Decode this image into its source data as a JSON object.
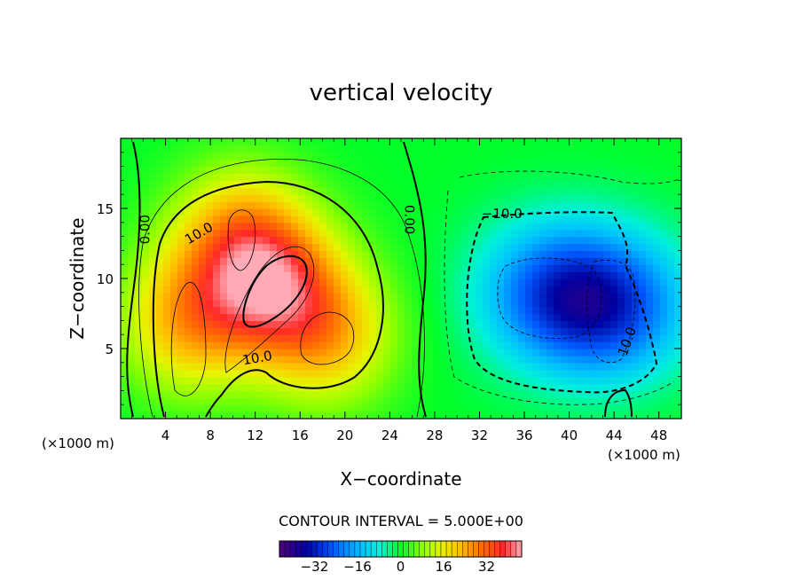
{
  "chart_data": {
    "type": "heatmap",
    "title": "vertical velocity",
    "xlabel": "X−coordinate",
    "ylabel": "Z−coordinate",
    "x_unit_label": "(×1000 m)",
    "y_unit_label": "(×1000 m)",
    "xlim": [
      0,
      50
    ],
    "ylim": [
      0,
      20
    ],
    "x_ticks": [
      4,
      8,
      12,
      16,
      20,
      24,
      28,
      32,
      36,
      40,
      44,
      48
    ],
    "y_ticks": [
      5,
      10,
      15
    ],
    "contour_interval_label": "CONTOUR INTERVAL = 5.000E+00",
    "contour_labels": [
      {
        "text": "0.00",
        "x": 2.2,
        "z": 13.5,
        "rotate": -90
      },
      {
        "text": "10.0",
        "x": 7.0,
        "z": 13.2,
        "rotate": -30
      },
      {
        "text": "10.0",
        "x": 12.2,
        "z": 4.3,
        "rotate": -10
      },
      {
        "text": "0.00",
        "x": 25.7,
        "z": 14.2,
        "rotate": 90
      },
      {
        "text": "−10.0",
        "x": 34.0,
        "z": 14.6,
        "rotate": 0
      },
      {
        "text": "10.0",
        "x": 45.2,
        "z": 5.5,
        "rotate": -70
      }
    ],
    "field_extrema": [
      {
        "sign": "max",
        "x": 13.5,
        "z": 9.5,
        "value": 30
      },
      {
        "sign": "max",
        "x": 6.0,
        "z": 7.0,
        "value": 22
      },
      {
        "sign": "max",
        "x": 18.5,
        "z": 6.0,
        "value": 20
      },
      {
        "sign": "max",
        "x": 10.5,
        "z": 13.0,
        "value": 20
      },
      {
        "sign": "min",
        "x": 38.5,
        "z": 9.0,
        "value": -22
      },
      {
        "sign": "min",
        "x": 44.0,
        "z": 8.0,
        "value": -24
      }
    ],
    "colorbar": {
      "range": [
        -45,
        45
      ],
      "ticks": [
        -32,
        -16,
        0,
        16,
        32
      ],
      "tick_labels": [
        "−32",
        "−16",
        "0",
        "16",
        "32"
      ]
    }
  }
}
